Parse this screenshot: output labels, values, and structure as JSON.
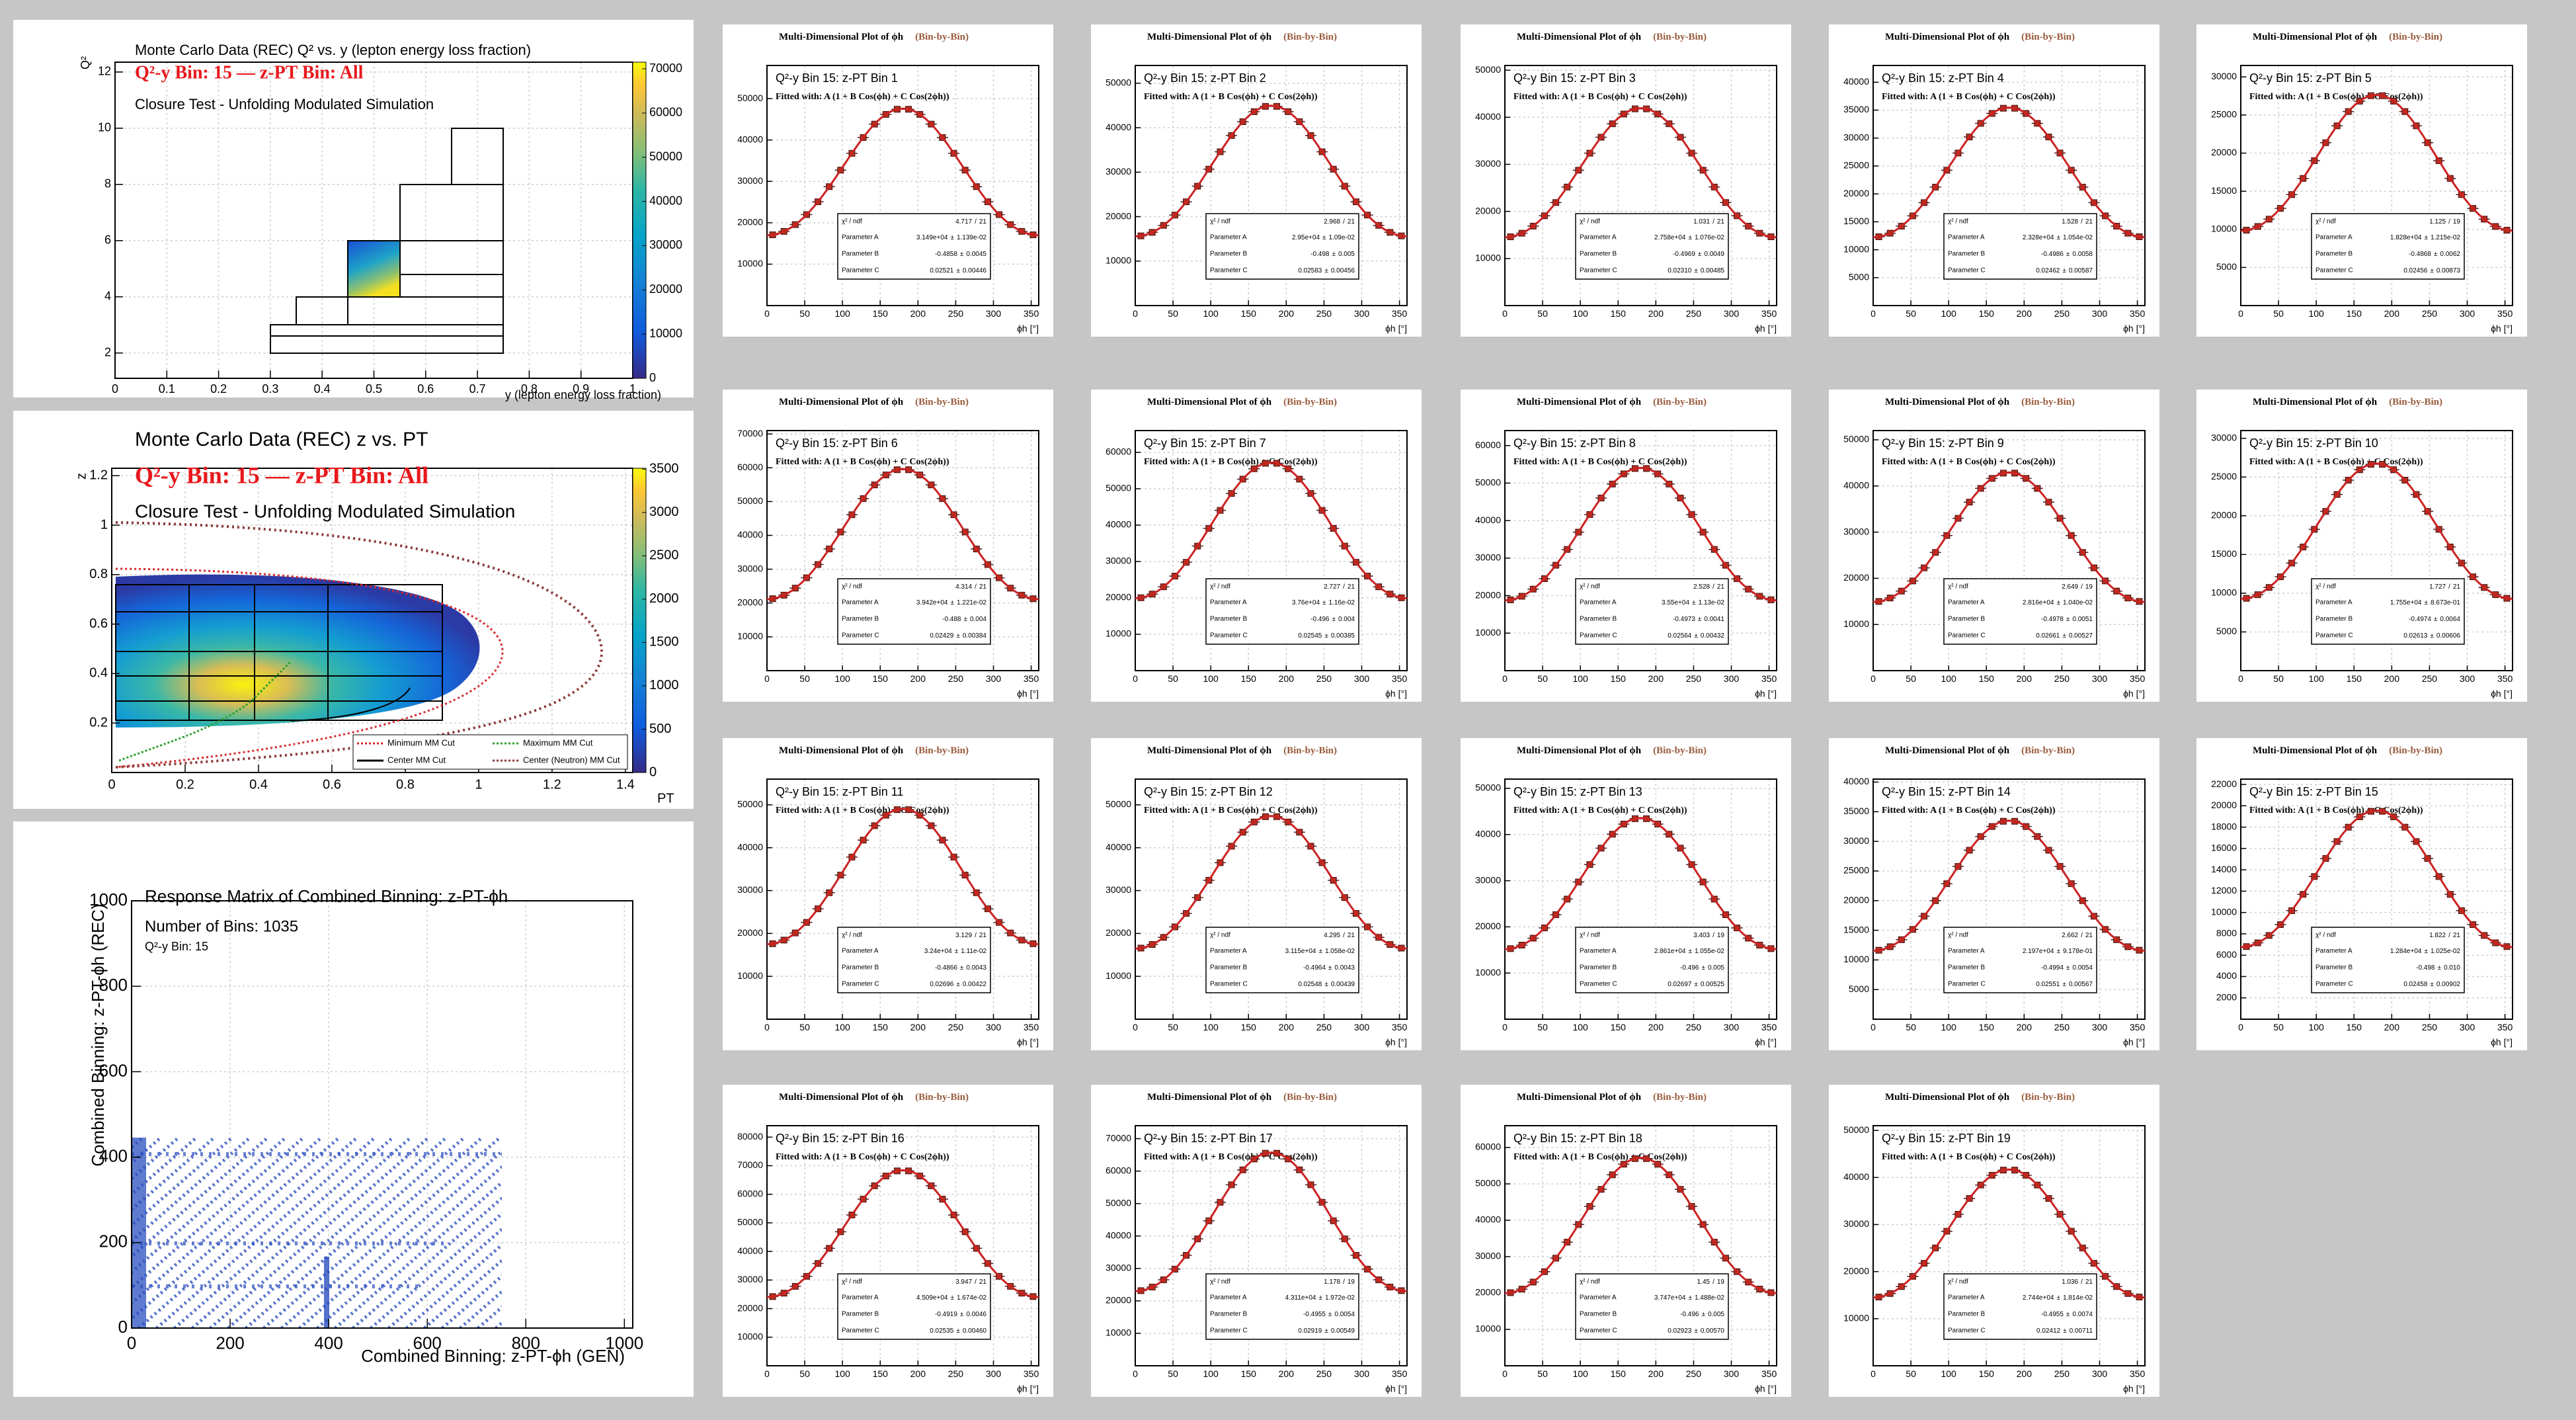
{
  "panels": {
    "q2_y": {
      "title": "Monte Carlo Data (REC) Q² vs. y (lepton energy loss fraction)",
      "selection": "Q²-y Bin: 15 — z-PT Bin: All",
      "subtitle": "Closure Test - Unfolding Modulated Simulation",
      "x_label": "y (lepton energy loss fraction)",
      "y_label": "Q²",
      "xlim": [
        0,
        1
      ],
      "xticks": [
        0,
        0.1,
        0.2,
        0.3,
        0.4,
        0.5,
        0.6,
        0.7,
        0.8,
        0.9,
        1
      ],
      "ylim": [
        1.1,
        12.35
      ],
      "yticks": [
        2,
        4,
        6,
        8,
        10,
        12
      ],
      "zlim": [
        0,
        71500
      ],
      "zticks": [
        0,
        10000,
        20000,
        30000,
        40000,
        50000,
        60000,
        70000
      ]
    },
    "z_pt": {
      "title": "Monte Carlo Data (REC) z vs. PT",
      "selection": "Q²-y Bin: 15 — z-PT Bin: All",
      "subtitle": "Closure Test - Unfolding Modulated Simulation",
      "x_label": "PT",
      "y_label": "z",
      "xlim": [
        0,
        1.42
      ],
      "xticks": [
        0,
        0.2,
        0.4,
        0.6,
        0.8,
        1,
        1.2,
        1.4
      ],
      "ylim": [
        0,
        1.23
      ],
      "yticks": [
        0.2,
        0.4,
        0.6,
        0.8,
        1,
        1.2
      ],
      "zlim": [
        0,
        3510
      ],
      "zticks": [
        0,
        500,
        1000,
        1500,
        2000,
        2500,
        3000,
        3500
      ],
      "legend": [
        {
          "name": "Minimum MM Cut",
          "color": "#d62728"
        },
        {
          "name": "Maximum MM Cut",
          "color": "#2ca02c"
        },
        {
          "name": "Center MM Cut",
          "color": "#000000"
        },
        {
          "name": "Center (Neutron) MM Cut",
          "color": "#8b3a3a"
        }
      ]
    },
    "response": {
      "title": "Response Matrix of Combined Binning: z-PT-ϕh",
      "bins_label": "Number of Bins: 1035",
      "selection": "Q²-y Bin: 15",
      "x_label": "Combined Binning: z-PT-ϕh (GEN)",
      "y_label": "Combined Binning: z-PT-ϕh (REC)",
      "xlim": [
        0,
        1017
      ],
      "xticks": [
        0,
        200,
        400,
        600,
        800,
        1000
      ],
      "ylim": [
        0,
        1000
      ],
      "yticks": [
        0,
        200,
        400,
        600,
        800,
        1000
      ]
    }
  },
  "fits": {
    "type": "line",
    "title": "Multi-Dimensional Plot of ϕh",
    "title_tag": "(Bin-by-Bin)",
    "formula": "Fitted with: A (1 + B Cos(ϕh) + C Cos(2ϕh))",
    "chi2_label": "χ² / ndf",
    "slash": "/",
    "pm": "±",
    "param_names": [
      "Parameter A",
      "Parameter B",
      "Parameter C"
    ],
    "x_label": "ϕh [°]",
    "xlim": [
      0,
      360
    ],
    "xticks": [
      0,
      50,
      100,
      150,
      200,
      250,
      300,
      350
    ],
    "color": "#cc2222",
    "grid": true,
    "plots": [
      {
        "label": "Q²-y Bin 15: z-PT Bin 1",
        "ylim": [
          0,
          58000
        ],
        "yticks": [
          10000,
          20000,
          30000,
          40000,
          50000
        ],
        "chi2": 4.717,
        "ndf": 21,
        "A": {
          "value": 31490,
          "label": "3.149e+04"
        },
        "A_err": {
          "value": 0.01139,
          "label": "1.139e-02"
        },
        "B": -0.4858,
        "B_err": 0.0045,
        "C": 0.02521,
        "C_err": 0.00446
      },
      {
        "label": "Q²-y Bin 15: z-PT Bin 2",
        "ylim": [
          0,
          54000
        ],
        "yticks": [
          10000,
          20000,
          30000,
          40000,
          50000
        ],
        "chi2": 2.968,
        "ndf": 21,
        "A": {
          "value": 29500,
          "label": "2.95e+04"
        },
        "A_err": {
          "value": 0.0109,
          "label": "1.09e-02"
        },
        "B": -0.498,
        "B_err": 0.005,
        "C": 0.02583,
        "C_err": 0.00456
      },
      {
        "label": "Q²-y Bin 15: z-PT Bin 3",
        "ylim": [
          0,
          51000
        ],
        "yticks": [
          10000,
          20000,
          30000,
          40000,
          50000
        ],
        "chi2": 1.031,
        "ndf": 21,
        "A": {
          "value": 27580,
          "label": "2.758e+04"
        },
        "A_err": {
          "value": 0.01076,
          "label": "1.076e-02"
        },
        "B": -0.4969,
        "B_err": 0.0049,
        "C": {
          "value": 0.0231,
          "label": "0.02310"
        },
        "C_err": 0.00485
      },
      {
        "label": "Q²-y Bin 15: z-PT Bin 4",
        "ylim": [
          0,
          43000
        ],
        "yticks": [
          5000,
          10000,
          15000,
          20000,
          25000,
          30000,
          35000,
          40000
        ],
        "chi2": 1.528,
        "ndf": 21,
        "A": {
          "value": 23280,
          "label": "2.328e+04"
        },
        "A_err": {
          "value": 0.01054,
          "label": "1.054e-02"
        },
        "B": -0.4986,
        "B_err": 0.0058,
        "C": 0.02462,
        "C_err": 0.00587
      },
      {
        "label": "Q²-y Bin 15: z-PT Bin 5",
        "ylim": [
          0,
          31500
        ],
        "yticks": [
          5000,
          10000,
          15000,
          20000,
          25000,
          30000
        ],
        "chi2": 1.125,
        "ndf": 19,
        "A": {
          "value": 18280,
          "label": "1.828e+04"
        },
        "A_err": {
          "value": 0.01215,
          "label": "1.215e-02"
        },
        "B": -0.4868,
        "B_err": 0.0062,
        "C": 0.02456,
        "C_err": 0.00873
      },
      {
        "label": "Q²-y Bin 15: z-PT Bin 6",
        "ylim": [
          0,
          71000
        ],
        "yticks": [
          10000,
          20000,
          30000,
          40000,
          50000,
          60000,
          70000
        ],
        "chi2": 4.314,
        "ndf": 21,
        "A": {
          "value": 39420,
          "label": "3.942e+04"
        },
        "A_err": {
          "value": 0.01221,
          "label": "1.221e-02"
        },
        "B": -0.488,
        "B_err": 0.004,
        "C": 0.02429,
        "C_err": 0.00384
      },
      {
        "label": "Q²-y Bin 15: z-PT Bin 7",
        "ylim": [
          0,
          66000
        ],
        "yticks": [
          10000,
          20000,
          30000,
          40000,
          50000,
          60000
        ],
        "chi2": 2.727,
        "ndf": 21,
        "A": {
          "value": 37600,
          "label": "3.76e+04"
        },
        "A_err": {
          "value": 0.0116,
          "label": "1.16e-02"
        },
        "B": -0.496,
        "B_err": 0.004,
        "C": 0.02545,
        "C_err": 0.00385
      },
      {
        "label": "Q²-y Bin 15: z-PT Bin 8",
        "ylim": [
          0,
          64000
        ],
        "yticks": [
          10000,
          20000,
          30000,
          40000,
          50000,
          60000
        ],
        "chi2": 2.528,
        "ndf": 21,
        "A": {
          "value": 35500,
          "label": "3.55e+04"
        },
        "A_err": {
          "value": 0.0113,
          "label": "1.13e-02"
        },
        "B": -0.4973,
        "B_err": 0.0041,
        "C": 0.02564,
        "C_err": 0.00432
      },
      {
        "label": "Q²-y Bin 15: z-PT Bin 9",
        "ylim": [
          0,
          52000
        ],
        "yticks": [
          10000,
          20000,
          30000,
          40000,
          50000
        ],
        "chi2": 2.649,
        "ndf": 19,
        "A": {
          "value": 28160,
          "label": "2.816e+04"
        },
        "A_err": {
          "value": 0.0104,
          "label": "1.040e-02"
        },
        "B": -0.4978,
        "B_err": 0.0051,
        "C": 0.02661,
        "C_err": 0.00527
      },
      {
        "label": "Q²-y Bin 15: z-PT Bin 10",
        "ylim": [
          0,
          31000
        ],
        "yticks": [
          5000,
          10000,
          15000,
          20000,
          25000,
          30000
        ],
        "chi2": 1.727,
        "ndf": 21,
        "A": {
          "value": 17550,
          "label": "1.755e+04"
        },
        "A_err": {
          "value": 0.8673,
          "label": "8.673e-01"
        },
        "B": -0.4974,
        "B_err": 0.0064,
        "C": 0.02613,
        "C_err": 0.00606
      },
      {
        "label": "Q²-y Bin 15: z-PT Bin 11",
        "ylim": [
          0,
          56000
        ],
        "yticks": [
          10000,
          20000,
          30000,
          40000,
          50000
        ],
        "chi2": 3.129,
        "ndf": 21,
        "A": {
          "value": 32400,
          "label": "3.24e+04"
        },
        "A_err": {
          "value": 0.0111,
          "label": "1.11e-02"
        },
        "B": -0.4866,
        "B_err": 0.0043,
        "C": 0.02696,
        "C_err": 0.00422
      },
      {
        "label": "Q²-y Bin 15: z-PT Bin 12",
        "ylim": [
          0,
          56000
        ],
        "yticks": [
          10000,
          20000,
          30000,
          40000,
          50000
        ],
        "chi2": 4.295,
        "ndf": 21,
        "A": {
          "value": 31150,
          "label": "3.115e+04"
        },
        "A_err": {
          "value": 0.01058,
          "label": "1.058e-02"
        },
        "B": -0.4964,
        "B_err": 0.0043,
        "C": 0.02548,
        "C_err": 0.00439
      },
      {
        "label": "Q²-y Bin 15: z-PT Bin 13",
        "ylim": [
          0,
          52000
        ],
        "yticks": [
          10000,
          20000,
          30000,
          40000,
          50000
        ],
        "chi2": 3.403,
        "ndf": 19,
        "A": {
          "value": 28610,
          "label": "2.861e+04"
        },
        "A_err": {
          "value": 0.01055,
          "label": "1.055e-02"
        },
        "B": -0.496,
        "B_err": 0.005,
        "C": 0.02697,
        "C_err": 0.00525
      },
      {
        "label": "Q²-y Bin 15: z-PT Bin 14",
        "ylim": [
          0,
          40500
        ],
        "yticks": [
          5000,
          10000,
          15000,
          20000,
          25000,
          30000,
          35000,
          40000
        ],
        "chi2": 2.662,
        "ndf": 21,
        "A": {
          "value": 21970,
          "label": "2.197e+04"
        },
        "A_err": {
          "value": 0.9178,
          "label": "9.178e-01"
        },
        "B": -0.4994,
        "B_err": 0.0054,
        "C": 0.02551,
        "C_err": 0.00567
      },
      {
        "label": "Q²-y Bin 15: z-PT Bin 15",
        "ylim": [
          0,
          22500
        ],
        "yticks": [
          2000,
          4000,
          6000,
          8000,
          10000,
          12000,
          14000,
          16000,
          18000,
          20000,
          22000
        ],
        "chi2": 1.822,
        "ndf": 21,
        "A": {
          "value": 12840,
          "label": "1.284e+04"
        },
        "A_err": {
          "value": 0.01025,
          "label": "1.025e-02"
        },
        "B": -0.498,
        "B_err": {
          "value": 0.01,
          "label": "0.010"
        },
        "C": 0.02458,
        "C_err": 0.00902
      },
      {
        "label": "Q²-y Bin 15: z-PT Bin 16",
        "ylim": [
          0,
          84000
        ],
        "yticks": [
          10000,
          20000,
          30000,
          40000,
          50000,
          60000,
          70000,
          80000
        ],
        "chi2": 3.947,
        "ndf": 21,
        "A": {
          "value": 45090,
          "label": "4.509e+04"
        },
        "A_err": {
          "value": 0.01674,
          "label": "1.674e-02"
        },
        "B": -0.4919,
        "B_err": 0.0046,
        "C": 0.02535,
        "C_err": {
          "value": 0.0046,
          "label": "0.00460"
        }
      },
      {
        "label": "Q²-y Bin 15: z-PT Bin 17",
        "ylim": [
          0,
          74000
        ],
        "yticks": [
          10000,
          20000,
          30000,
          40000,
          50000,
          60000,
          70000
        ],
        "chi2": 1.178,
        "ndf": 19,
        "A": {
          "value": 43110,
          "label": "4.311e+04"
        },
        "A_err": {
          "value": 0.01972,
          "label": "1.972e-02"
        },
        "B": -0.4955,
        "B_err": 0.0054,
        "C": 0.02919,
        "C_err": 0.00549
      },
      {
        "label": "Q²-y Bin 15: z-PT Bin 18",
        "ylim": [
          0,
          66000
        ],
        "yticks": [
          10000,
          20000,
          30000,
          40000,
          50000,
          60000
        ],
        "chi2": 1.45,
        "ndf": 19,
        "A": {
          "value": 37470,
          "label": "3.747e+04"
        },
        "A_err": {
          "value": 0.01488,
          "label": "1.488e-02"
        },
        "B": -0.496,
        "B_err": 0.005,
        "C": 0.02923,
        "C_err": {
          "value": 0.0057,
          "label": "0.00570"
        }
      },
      {
        "label": "Q²-y Bin 15: z-PT Bin 19",
        "ylim": [
          0,
          51000
        ],
        "yticks": [
          10000,
          20000,
          30000,
          40000,
          50000
        ],
        "chi2": 1.036,
        "ndf": 21,
        "A": {
          "value": 27440,
          "label": "2.744e+04"
        },
        "A_err": {
          "value": 0.01814,
          "label": "1.814e-02"
        },
        "B": -0.4955,
        "B_err": 0.0074,
        "C": 0.02412,
        "C_err": 0.00711
      }
    ]
  }
}
